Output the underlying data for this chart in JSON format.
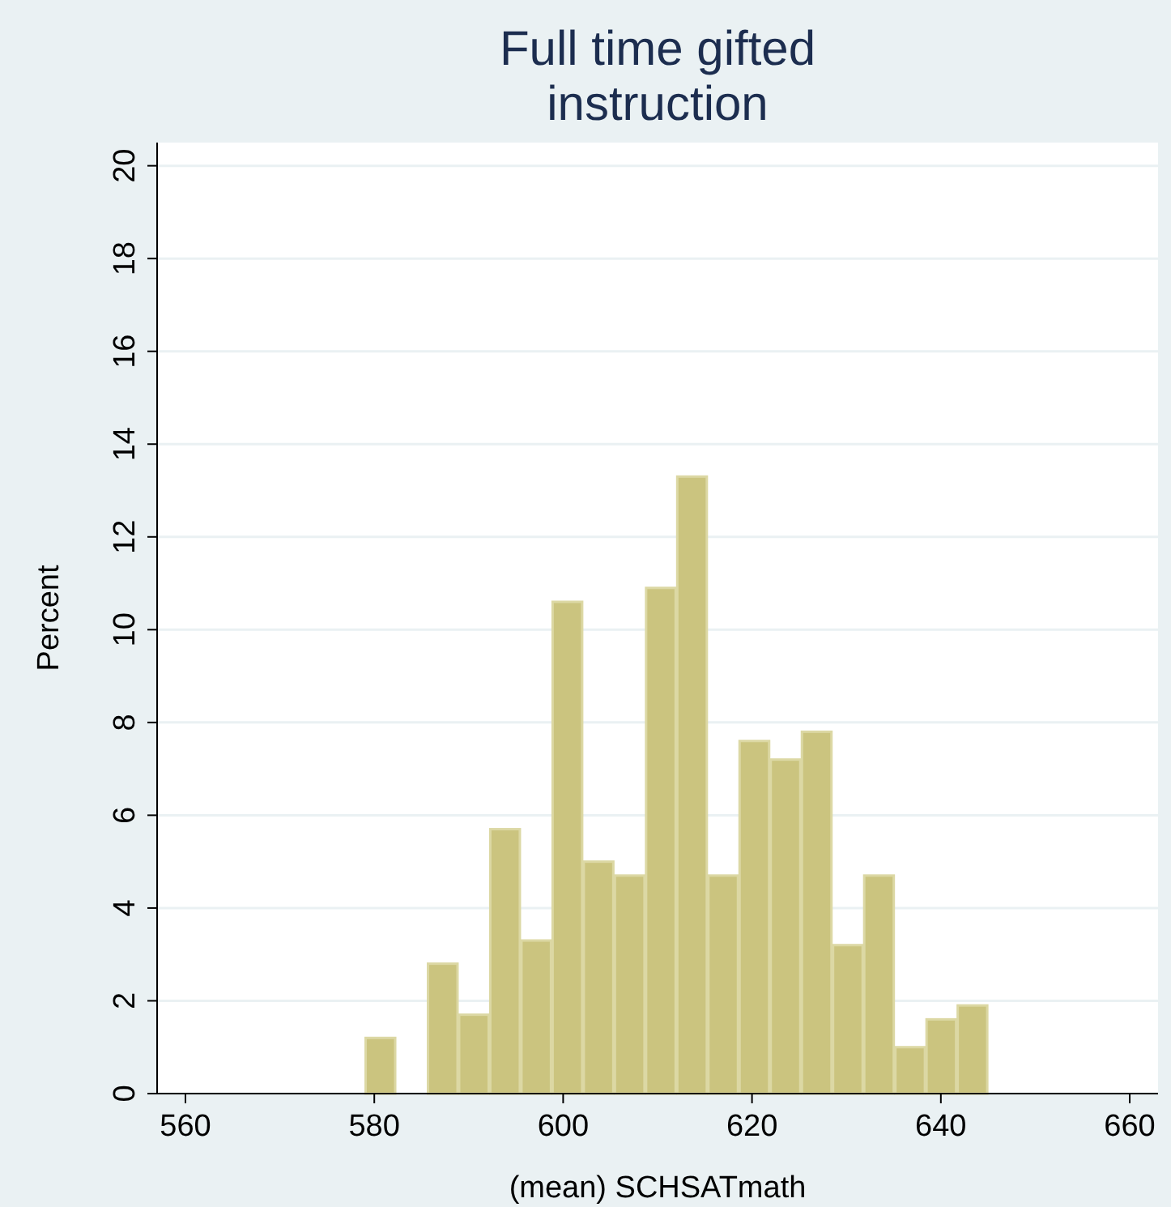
{
  "chart_data": {
    "type": "histogram",
    "title": "Full time gifted\ninstruction",
    "xlabel": "(mean) SCHSATmath",
    "ylabel": "Percent",
    "bins": [
      579,
      582.3,
      585.6,
      588.9,
      592.2,
      595.5,
      598.8,
      602.1,
      605.4,
      608.7,
      612,
      615.3,
      618.6,
      621.9,
      625.2,
      628.5,
      631.8,
      635.1,
      638.4,
      641.7,
      645
    ],
    "values": [
      1.2,
      0,
      2.8,
      1.7,
      5.7,
      3.3,
      10.6,
      5,
      4.7,
      10.9,
      13.3,
      4.7,
      7.6,
      7.2,
      7.8,
      3.2,
      4.7,
      1,
      1.6,
      1.9
    ],
    "color": "#cbc47f",
    "xlim": [
      557,
      663
    ],
    "xticks": [
      560,
      580,
      600,
      620,
      640,
      660
    ],
    "ylim": [
      0,
      20.5
    ],
    "yticks": [
      0,
      2,
      4,
      6,
      8,
      10,
      12,
      14,
      16,
      18,
      20
    ],
    "grid": "y"
  }
}
